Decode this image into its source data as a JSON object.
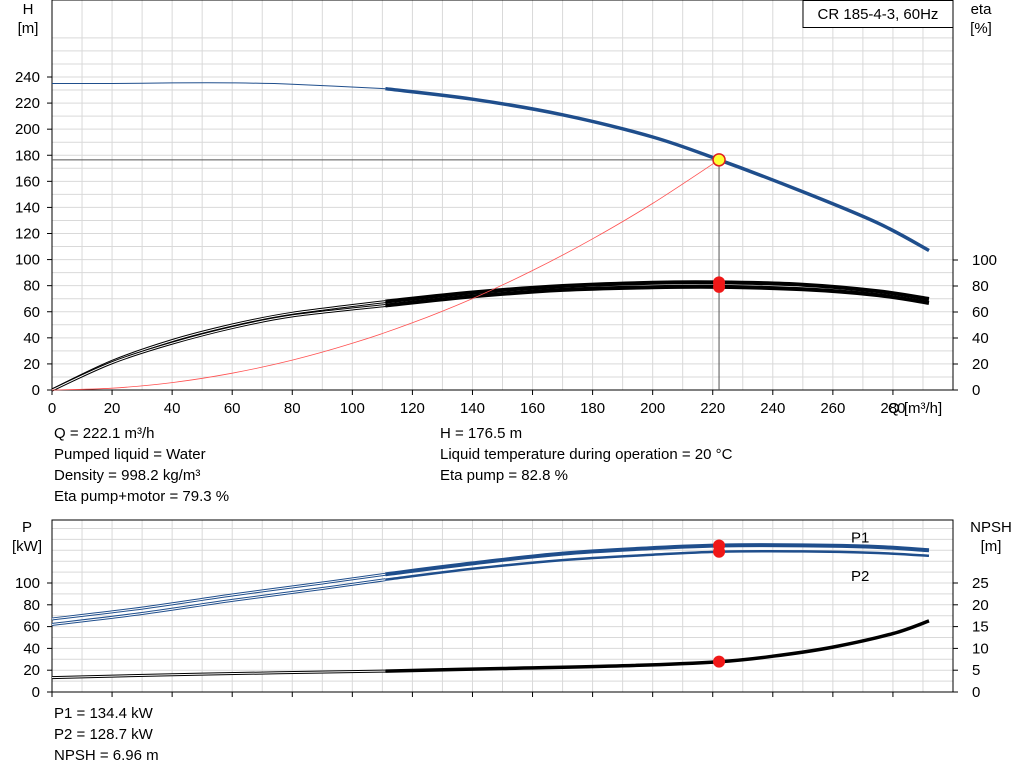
{
  "chart_data": [
    {
      "type": "line",
      "title": "CR 185-4-3, 60Hz",
      "xlabel": "Q [m³/h]",
      "ylabel_left": "H\n[m]",
      "ylabel_right": "eta\n[%]",
      "x_ticks": [
        0,
        20,
        40,
        60,
        80,
        100,
        120,
        140,
        160,
        180,
        200,
        220,
        240,
        260,
        280
      ],
      "xlim": [
        0,
        300
      ],
      "ylim_left": [
        0,
        270
      ],
      "y_ticks_left": [
        0,
        20,
        40,
        60,
        80,
        100,
        120,
        140,
        160,
        180,
        200,
        220,
        240
      ],
      "y_ticks_right": [
        0,
        20,
        40,
        60,
        80,
        100
      ],
      "grid": true,
      "series": [
        {
          "id": "H",
          "axis": "left",
          "color": "#1f4e8c",
          "thin_until_x": 111,
          "x": [
            0,
            20,
            40,
            60,
            80,
            111,
            140,
            170,
            200,
            222.1,
            250,
            275,
            292
          ],
          "values": [
            235,
            235,
            235.5,
            235.5,
            234.5,
            231,
            223,
            211,
            194,
            176.5,
            152,
            128,
            107
          ]
        },
        {
          "id": "eta_pump",
          "axis": "right",
          "color": "#000000",
          "thin_until_x": 111,
          "x": [
            0,
            20,
            40,
            60,
            80,
            111,
            140,
            170,
            200,
            222.1,
            250,
            275,
            292
          ],
          "values": [
            0,
            22,
            38,
            50,
            59,
            68,
            75,
            80,
            82.5,
            82.8,
            81,
            76,
            70
          ]
        },
        {
          "id": "eta_pump_motor",
          "axis": "right",
          "color": "#000000",
          "thin_until_x": 111,
          "x": [
            0,
            20,
            40,
            60,
            80,
            111,
            140,
            170,
            200,
            222.1,
            250,
            275,
            292
          ],
          "values": [
            0,
            21,
            36,
            48,
            57,
            65,
            72,
            77,
            79,
            79.3,
            77.5,
            73,
            67
          ]
        },
        {
          "id": "system_curve",
          "axis": "left",
          "color": "#ff5050",
          "x": [
            0,
            20,
            40,
            60,
            80,
            100,
            120,
            140,
            160,
            180,
            200,
            222.1
          ],
          "values": [
            0,
            1.4,
            5.7,
            12.9,
            22.9,
            35.8,
            51.5,
            70.1,
            91.6,
            115.9,
            143.1,
            176.5
          ]
        }
      ],
      "duty_point": {
        "x": 222.1,
        "H": 176.5,
        "eta_pump": 82.8,
        "eta_pump_motor": 79.3
      }
    },
    {
      "type": "line",
      "ylabel_left": "P\n[kW]",
      "ylabel_right": "NPSH\n[m]",
      "x_ticks": [
        0,
        20,
        40,
        60,
        80,
        100,
        120,
        140,
        160,
        180,
        200,
        220,
        240,
        260,
        280
      ],
      "xlim": [
        0,
        300
      ],
      "ylim_left": [
        0,
        155
      ],
      "y_ticks_left": [
        0,
        20,
        40,
        60,
        80,
        100
      ],
      "ylim_right": [
        0,
        38.75
      ],
      "y_ticks_right": [
        0,
        5,
        10,
        15,
        20,
        25
      ],
      "grid": true,
      "series": [
        {
          "id": "P1",
          "name": "P1",
          "axis": "left",
          "color": "#1f4e8c",
          "thin_until_x": 111,
          "x": [
            0,
            30,
            60,
            90,
            111,
            140,
            170,
            200,
            222.1,
            250,
            275,
            292
          ],
          "values": [
            67,
            77,
            89,
            100,
            108,
            118,
            127,
            132,
            134.4,
            134.5,
            133,
            130
          ]
        },
        {
          "id": "P2",
          "name": "P2",
          "axis": "left",
          "color": "#1f4e8c",
          "thin_until_x": 111,
          "x": [
            0,
            30,
            60,
            90,
            111,
            140,
            170,
            200,
            222.1,
            250,
            275,
            292
          ],
          "values": [
            62,
            72,
            84,
            95,
            103,
            113,
            121,
            126,
            128.7,
            129,
            127.5,
            125
          ]
        },
        {
          "id": "NPSH",
          "axis": "right",
          "color": "#000000",
          "thin_until_x": 111,
          "x": [
            0,
            50,
            111,
            150,
            190,
            222.1,
            240,
            260,
            280,
            292
          ],
          "values": [
            3.3,
            4.1,
            4.8,
            5.4,
            6.0,
            6.96,
            8.2,
            10.3,
            13.4,
            16.3
          ]
        }
      ],
      "duty_point": {
        "x": 222.1,
        "P1": 134.4,
        "P2": 128.7,
        "NPSH": 6.96
      }
    }
  ],
  "info_top_left": [
    "Q = 222.1 m³/h",
    "Pumped liquid = Water",
    "Density = 998.2 kg/m³",
    "Eta pump+motor = 79.3 %"
  ],
  "info_top_right": [
    "H = 176.5 m",
    "Liquid temperature during operation = 20 °C",
    "Eta pump = 82.8 %"
  ],
  "info_bottom": [
    "P1 = 134.4 kW",
    "P2 = 128.7 kW",
    "NPSH = 6.96 m"
  ]
}
